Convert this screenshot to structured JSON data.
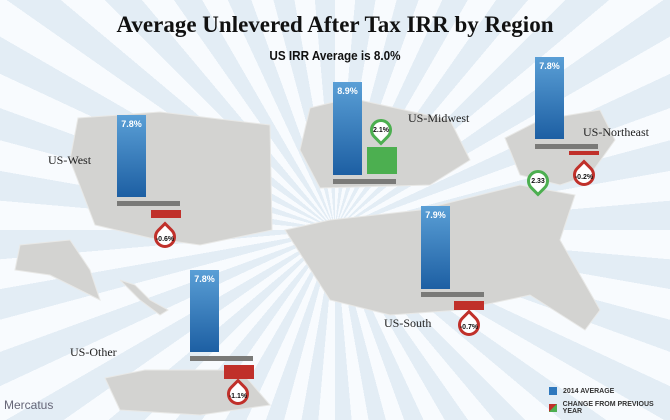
{
  "chart_data": {
    "type": "bar",
    "title": "Average Unlevered After Tax IRR by Region",
    "subtitle": "US IRR Average is 8.0%",
    "unit": "%",
    "regions": [
      {
        "name": "US-West",
        "avg_2014": 7.8,
        "avg_label": "7.8%",
        "change": -0.6,
        "change_label": "-0.6%"
      },
      {
        "name": "US-Midwest",
        "avg_2014": 8.9,
        "avg_label": "8.9%",
        "change": 2.1,
        "change_label": "2.1%"
      },
      {
        "name": "US-Northeast",
        "avg_2014": 7.8,
        "avg_label": "7.8%",
        "change": -0.2,
        "change_label": "-0.2%"
      },
      {
        "name": "US-South",
        "avg_2014": 7.9,
        "avg_label": "7.9%",
        "change": -0.7,
        "change_label": "-0.7%"
      },
      {
        "name": "US-Other",
        "avg_2014": 7.8,
        "avg_label": "7.8%",
        "change": -1.1,
        "change_label": "-1.1%"
      }
    ],
    "extra_marker": "2.33",
    "legend": [
      "2014 AVERAGE",
      "CHANGE FROM PREVIOUS YEAR"
    ],
    "colors": {
      "avg": "#2f78bd",
      "positive": "#4caf50",
      "negative": "#c0302a",
      "baseline": "#7a7a78"
    }
  },
  "logo": "Mercatus"
}
